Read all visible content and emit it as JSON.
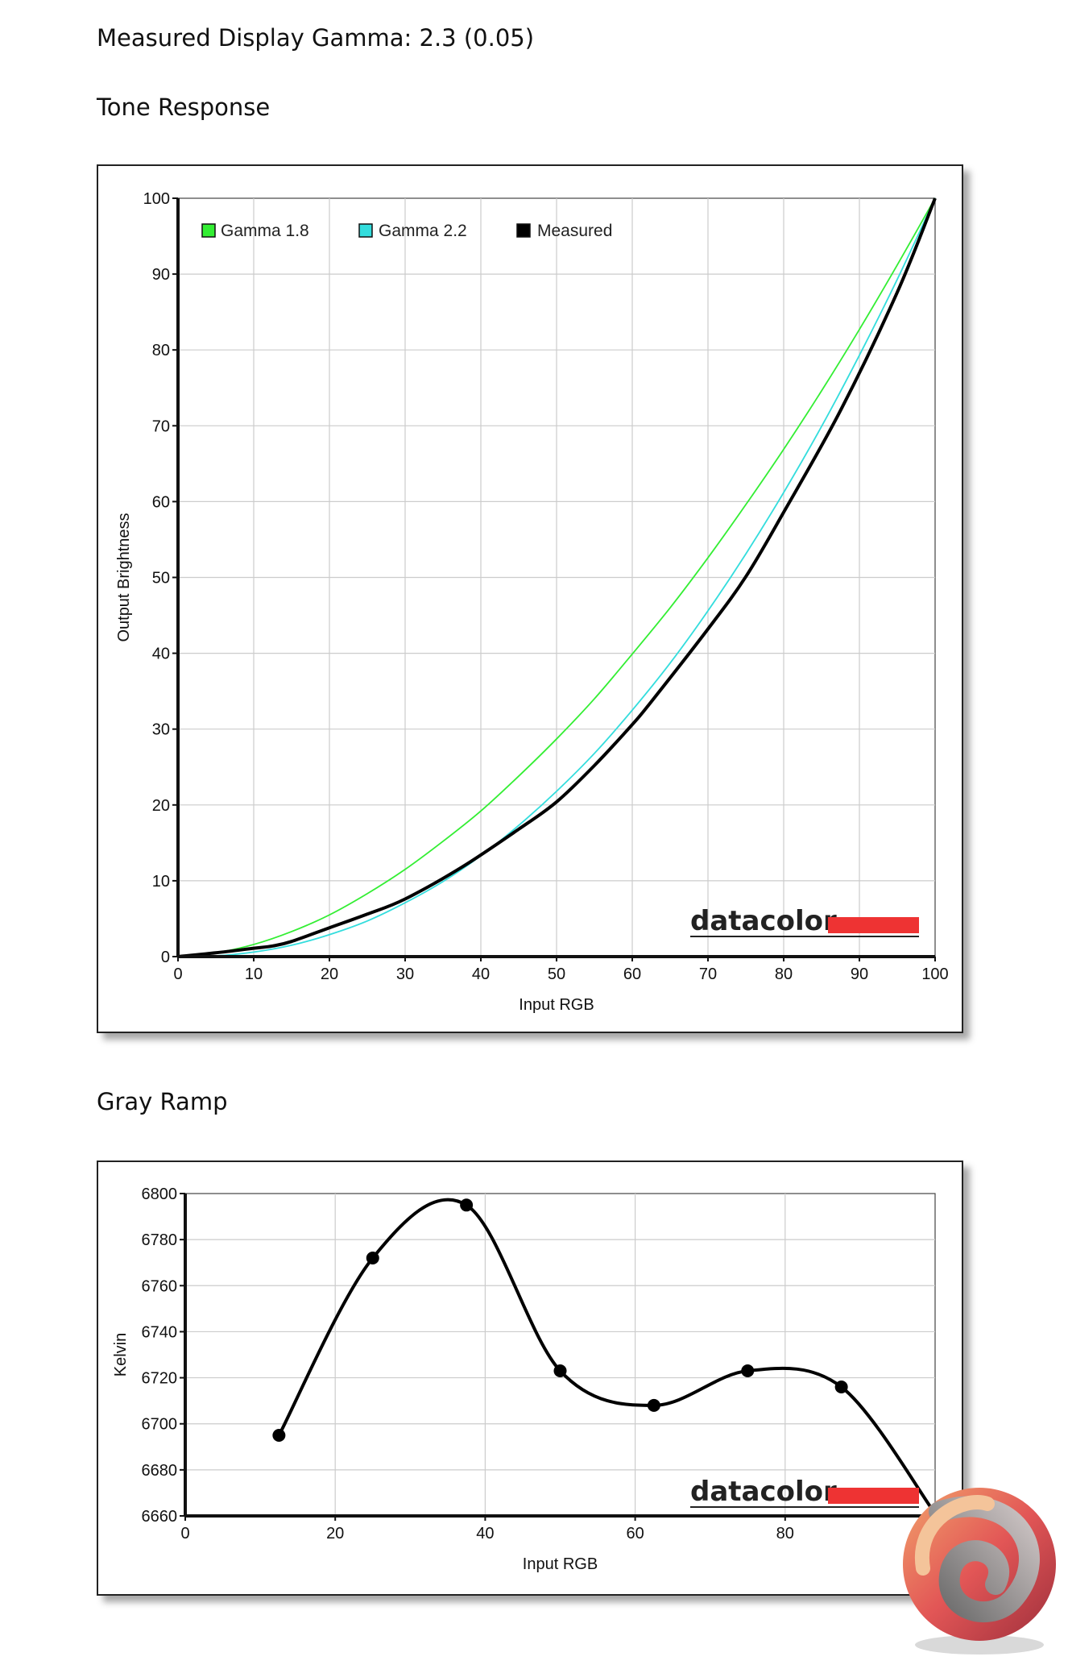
{
  "page": {
    "gamma_heading": "Measured Display Gamma: 2.3 (0.05)",
    "tone_heading": "Tone Response",
    "gray_heading": "Gray Ramp"
  },
  "chart_data": [
    {
      "type": "line",
      "xlabel": "Input RGB",
      "ylabel": "Output Brightness",
      "xlim": [
        0,
        100
      ],
      "ylim": [
        0,
        100
      ],
      "x_ticks": [
        "0",
        "10",
        "20",
        "30",
        "40",
        "50",
        "60",
        "70",
        "80",
        "90",
        "100"
      ],
      "y_ticks": [
        "0",
        "10",
        "20",
        "30",
        "40",
        "50",
        "60",
        "70",
        "80",
        "90",
        "100"
      ],
      "grid": true,
      "legend_position": "top-left",
      "watermark": "datacolor",
      "series": [
        {
          "name": "Gamma 1.8",
          "color": "#33ee33",
          "x": [
            0,
            5,
            10,
            15,
            20,
            25,
            30,
            35,
            40,
            45,
            50,
            55,
            60,
            65,
            70,
            75,
            80,
            85,
            90,
            95,
            100
          ],
          "values": [
            0,
            0.5,
            1.6,
            3.3,
            5.5,
            8.3,
            11.5,
            15.2,
            19.2,
            23.8,
            28.7,
            34.0,
            39.9,
            46.0,
            52.6,
            59.6,
            66.9,
            74.6,
            82.7,
            91.2,
            100
          ]
        },
        {
          "name": "Gamma 2.2",
          "color": "#33dddd",
          "x": [
            0,
            5,
            10,
            15,
            20,
            25,
            30,
            35,
            40,
            45,
            50,
            55,
            60,
            65,
            70,
            75,
            80,
            85,
            90,
            95,
            100
          ],
          "values": [
            0,
            0.1,
            0.6,
            1.5,
            2.9,
            4.7,
            7.1,
            9.9,
            13.3,
            17.3,
            21.8,
            26.8,
            32.5,
            38.7,
            45.6,
            53.1,
            61.2,
            69.9,
            79.3,
            89.3,
            100
          ]
        },
        {
          "name": "Measured",
          "color": "#000000",
          "x": [
            0,
            5,
            10,
            12.5,
            15,
            20,
            25,
            30,
            37.5,
            45,
            50,
            55,
            60,
            62.5,
            70,
            75,
            80,
            87.5,
            95,
            100
          ],
          "values": [
            0,
            0.5,
            1.1,
            1.4,
            2.0,
            3.8,
            5.6,
            7.6,
            11.8,
            16.8,
            20.4,
            25.2,
            30.6,
            33.6,
            43.2,
            50.1,
            58.6,
            72.0,
            87.6,
            100
          ]
        }
      ]
    },
    {
      "type": "line",
      "xlabel": "Input RGB",
      "ylabel": "Kelvin",
      "xlim": [
        0,
        100
      ],
      "ylim": [
        6660,
        6800
      ],
      "x_ticks": [
        "0",
        "20",
        "40",
        "60",
        "80",
        "100"
      ],
      "y_ticks": [
        "6660",
        "6680",
        "6700",
        "6720",
        "6740",
        "6760",
        "6780",
        "6800"
      ],
      "grid": true,
      "watermark": "datacolor",
      "series": [
        {
          "color": "#000000",
          "x": [
            12.5,
            25,
            37.5,
            50,
            62.5,
            75,
            87.5,
            100
          ],
          "values": [
            6695,
            6772,
            6795,
            6723,
            6708,
            6723,
            6716,
            6661
          ]
        }
      ]
    }
  ]
}
